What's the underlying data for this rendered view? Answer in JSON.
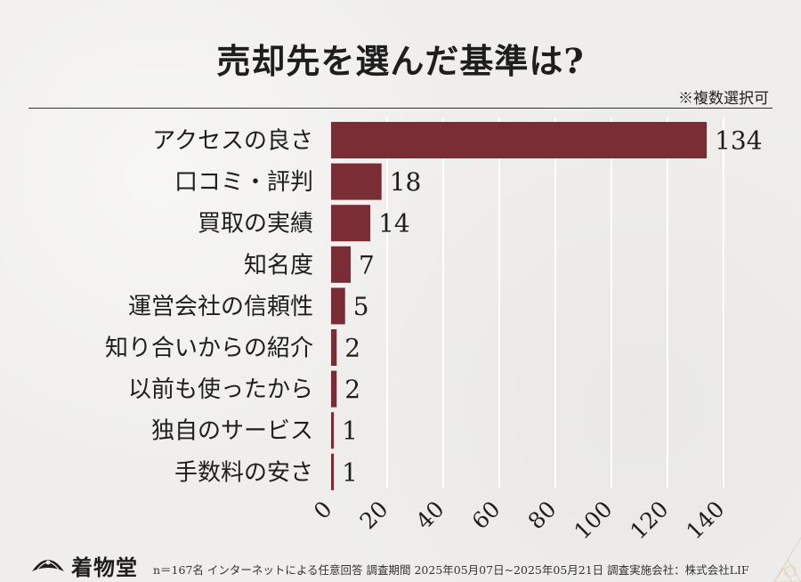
{
  "title": "売却先を選んだ基準は?",
  "note": "※複数選択可",
  "logo_text": "着物堂",
  "source": "n＝167名 インターネットによる任意回答 調査期間 2025年05月07日~2025年05月21日 調査実施会社：株式会社LIF",
  "colors": {
    "bar": "#7b2d35",
    "grid": "#ffffff",
    "background": "#efeeec"
  },
  "chart_data": {
    "type": "bar",
    "orientation": "horizontal",
    "categories": [
      "アクセスの良さ",
      "口コミ・評判",
      "買取の実績",
      "知名度",
      "運営会社の信頼性",
      "知り合いからの紹介",
      "以前も使ったから",
      "独自のサービス",
      "手数料の安さ"
    ],
    "values": [
      134,
      18,
      14,
      7,
      5,
      2,
      2,
      1,
      1
    ],
    "xlim": [
      0,
      140
    ],
    "xticks": [
      0,
      20,
      40,
      60,
      80,
      100,
      120,
      140
    ],
    "grid": true,
    "data_labels": true
  }
}
